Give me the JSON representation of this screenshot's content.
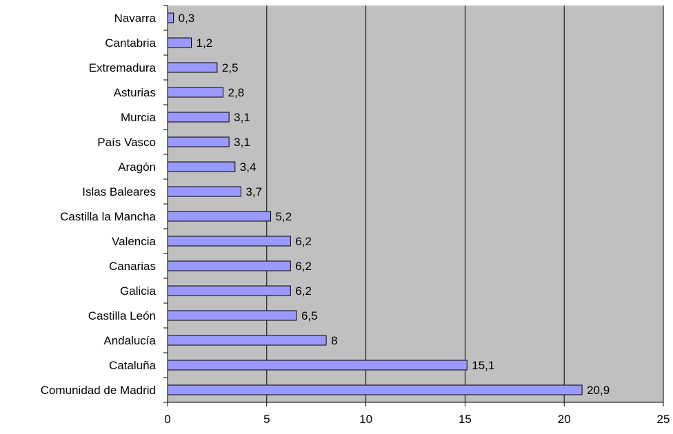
{
  "chart_data": {
    "type": "bar",
    "orientation": "horizontal",
    "categories": [
      "Navarra",
      "Cantabria",
      "Extremadura",
      "Asturias",
      "Murcia",
      "País Vasco",
      "Aragón",
      "Islas Baleares",
      "Castilla la Mancha",
      "Valencia",
      "Canarias",
      "Galicia",
      "Castilla León",
      "Andalucía",
      "Cataluña",
      "Comunidad de Madrid"
    ],
    "values": [
      0.3,
      1.2,
      2.5,
      2.8,
      3.1,
      3.1,
      3.4,
      3.7,
      5.2,
      6.2,
      6.2,
      6.2,
      6.5,
      8,
      15.1,
      20.9
    ],
    "value_labels": [
      "0,3",
      "1,2",
      "2,5",
      "2,8",
      "3,1",
      "3,1",
      "3,4",
      "3,7",
      "5,2",
      "6,2",
      "6,2",
      "6,2",
      "6,5",
      "8",
      "15,1",
      "20,9"
    ],
    "xlim": [
      0,
      25
    ],
    "xticks": [
      0,
      5,
      10,
      15,
      20,
      25
    ],
    "xtick_labels": [
      "0",
      "5",
      "10",
      "15",
      "20",
      "25"
    ],
    "grid": "vertical",
    "legend": "none",
    "title": "",
    "xlabel": "",
    "ylabel": "",
    "colors": {
      "bar_fill": "#9999ff",
      "bar_stroke": "#000000",
      "plot_background": "#c0c0c0",
      "gridline": "#000000"
    }
  }
}
